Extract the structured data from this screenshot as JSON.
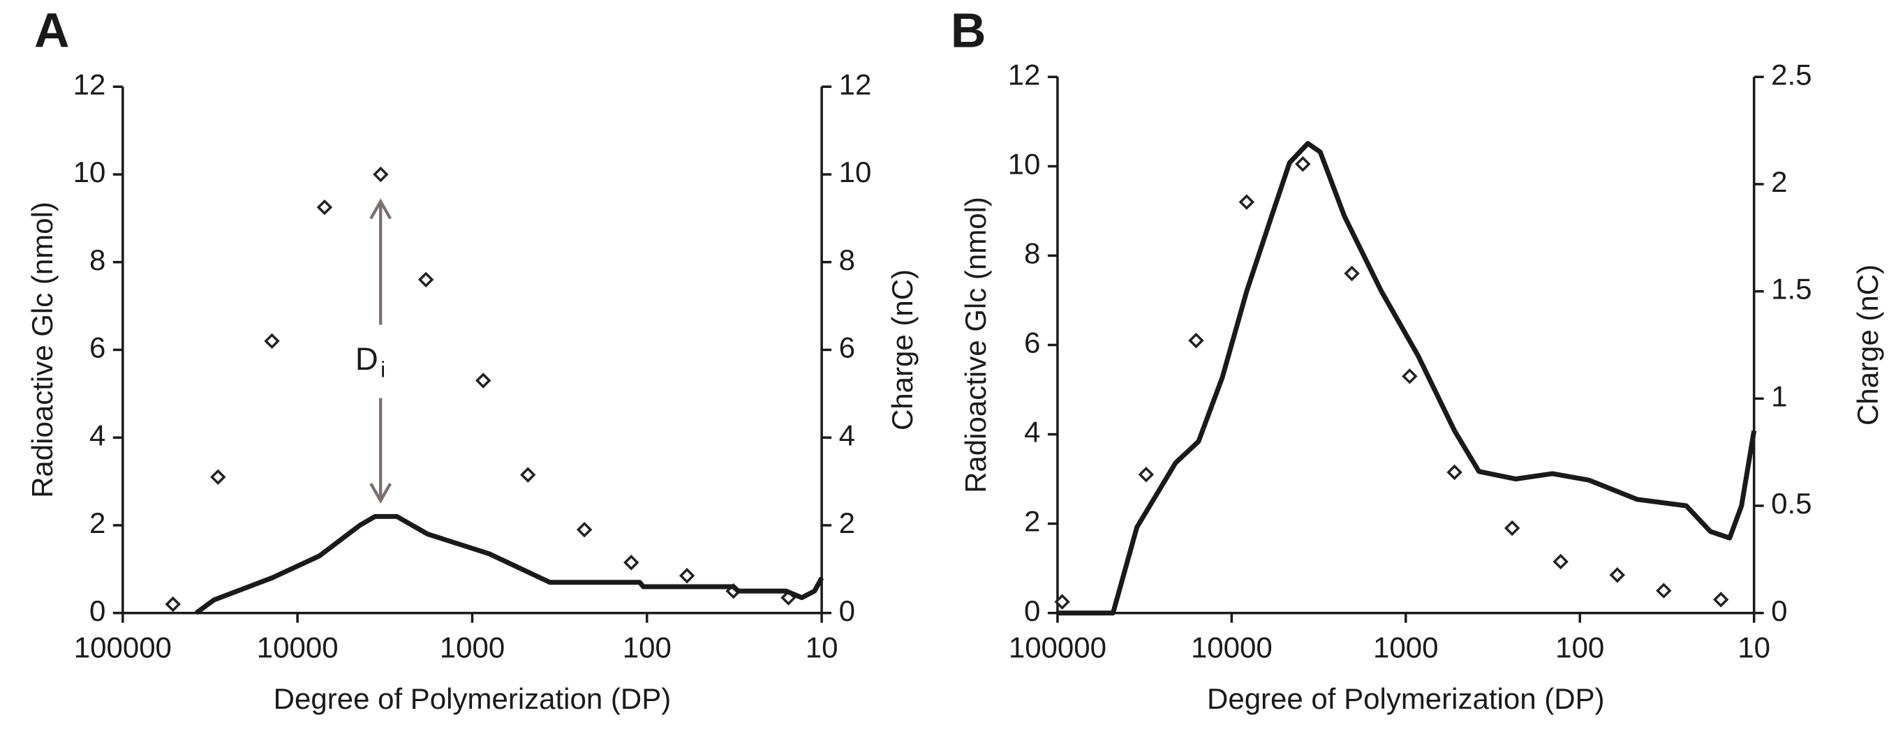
{
  "chart_data": [
    {
      "type": "combo",
      "panel_label": "A",
      "xlabel": "Degree of Polymerization (DP)",
      "ylabel": "Radioactive Glc (nmol)",
      "y2label": "Charge (nC)",
      "xscale": "log",
      "xlim": [
        100000,
        10
      ],
      "xticks": [
        100000,
        10000,
        1000,
        100,
        10
      ],
      "ylim": [
        0,
        12
      ],
      "yticks": [
        0,
        2,
        4,
        6,
        8,
        10,
        12
      ],
      "y2lim": [
        0,
        12
      ],
      "y2ticks": [
        0,
        2,
        4,
        6,
        8,
        10,
        12
      ],
      "annotation": {
        "text": "D",
        "subscript": "i"
      },
      "series": [
        {
          "kind": "scatter",
          "color": "#222222",
          "x": [
            51600,
            28500,
            14000,
            7000,
            3340,
            1840,
            865,
            480,
            228,
            123,
            59,
            32,
            15.5
          ],
          "values": [
            0.2,
            3.1,
            6.2,
            9.25,
            10.0,
            7.6,
            5.3,
            3.15,
            1.9,
            1.15,
            0.85,
            0.5,
            0.35
          ]
        },
        {
          "kind": "line",
          "axis": "y2",
          "color": "#1a1a1a",
          "x": [
            38000,
            30000,
            14000,
            7500,
            4400,
            3600,
            2700,
            1800,
            800,
            360,
            110,
            105,
            32,
            30,
            16,
            13,
            11,
            10
          ],
          "values": [
            0,
            0.3,
            0.8,
            1.3,
            2.0,
            2.2,
            2.2,
            1.8,
            1.35,
            0.7,
            0.7,
            0.6,
            0.6,
            0.5,
            0.5,
            0.35,
            0.5,
            0.8
          ]
        }
      ]
    },
    {
      "type": "combo",
      "panel_label": "B",
      "xlabel": "Degree of Polymerization (DP)",
      "ylabel": "Radioactive Glc (nmol)",
      "y2label": "Charge (nC)",
      "xscale": "log",
      "xlim": [
        100000,
        10
      ],
      "xticks": [
        100000,
        10000,
        1000,
        100,
        10
      ],
      "ylim": [
        0,
        12
      ],
      "yticks": [
        0,
        2,
        4,
        6,
        8,
        10,
        12
      ],
      "y2lim": [
        0,
        2.5
      ],
      "y2ticks": [
        0,
        0.5,
        1,
        1.5,
        2,
        2.5
      ],
      "series": [
        {
          "kind": "scatter",
          "color": "#222222",
          "x": [
            94000,
            31000,
            16000,
            8200,
            3900,
            2040,
            950,
            525,
            245,
            129,
            61,
            33,
            15.5
          ],
          "values": [
            0.25,
            3.1,
            6.1,
            9.2,
            10.05,
            7.6,
            5.3,
            3.15,
            1.9,
            1.15,
            0.85,
            0.5,
            0.3
          ]
        },
        {
          "kind": "line",
          "axis": "y2",
          "color": "#1a1a1a",
          "x": [
            100000,
            48000,
            35000,
            21000,
            15500,
            11300,
            8200,
            5900,
            4650,
            3650,
            3100,
            2250,
            1380,
            850,
            525,
            380,
            234,
            144,
            89,
            47,
            24.5,
            17.8,
            13.8,
            11.8,
            10
          ],
          "values": [
            0,
            0,
            0.4,
            0.7,
            0.8,
            1.1,
            1.5,
            1.85,
            2.1,
            2.19,
            2.15,
            1.85,
            1.5,
            1.2,
            0.85,
            0.66,
            0.625,
            0.65,
            0.62,
            0.53,
            0.5,
            0.38,
            0.35,
            0.5,
            0.85
          ]
        }
      ]
    }
  ]
}
